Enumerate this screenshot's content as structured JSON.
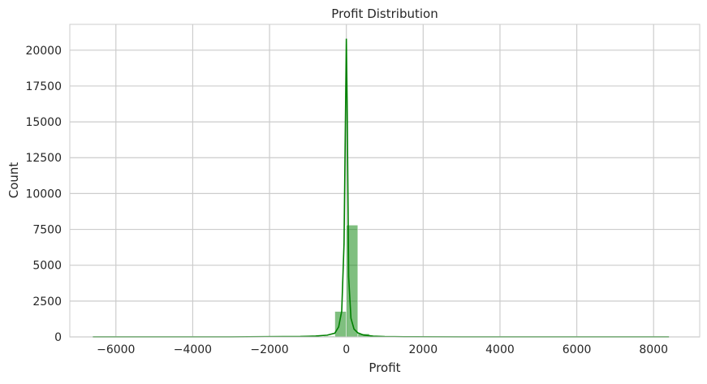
{
  "chart_data": {
    "type": "bar",
    "subtype": "histogram-with-kde",
    "title": "Profit Distribution",
    "xlabel": "Profit",
    "ylabel": "Count",
    "xlim": [
      -7200,
      9200
    ],
    "ylim": [
      0,
      21800
    ],
    "xticks": [
      -6000,
      -4000,
      -2000,
      0,
      2000,
      4000,
      6000,
      8000
    ],
    "xtick_labels": [
      "−6000",
      "−4000",
      "−2000",
      "0",
      "2000",
      "4000",
      "6000",
      "8000"
    ],
    "yticks": [
      0,
      2500,
      5000,
      7500,
      10000,
      12500,
      15000,
      17500,
      20000
    ],
    "ytick_labels": [
      "0",
      "2500",
      "5000",
      "7500",
      "10000",
      "12500",
      "15000",
      "17500",
      "20000"
    ],
    "grid": true,
    "colors": {
      "bar": "#008000",
      "kde": "#008000",
      "grid": "#cccccc",
      "spine": "#cccccc",
      "text": "#262626"
    },
    "bins": [
      {
        "x0": -6600,
        "x1": -6300,
        "count": 3
      },
      {
        "x0": -1200,
        "x1": -900,
        "count": 8
      },
      {
        "x0": -900,
        "x1": -600,
        "count": 20
      },
      {
        "x0": -600,
        "x1": -300,
        "count": 60
      },
      {
        "x0": -300,
        "x1": 0,
        "count": 1780
      },
      {
        "x0": 0,
        "x1": 300,
        "count": 7800
      },
      {
        "x0": 300,
        "x1": 600,
        "count": 220
      },
      {
        "x0": 600,
        "x1": 900,
        "count": 60
      },
      {
        "x0": 900,
        "x1": 1200,
        "count": 25
      },
      {
        "x0": 1200,
        "x1": 1500,
        "count": 12
      },
      {
        "x0": 8100,
        "x1": 8400,
        "count": 2
      }
    ],
    "kde": {
      "x": [
        -6600,
        -3000,
        -1200,
        -800,
        -500,
        -300,
        -200,
        -120,
        -60,
        -20,
        0,
        20,
        60,
        120,
        200,
        300,
        450,
        700,
        1000,
        1500,
        3000,
        6000,
        8400
      ],
      "y": [
        5,
        5,
        30,
        60,
        120,
        260,
        700,
        1800,
        6500,
        16000,
        20800,
        16500,
        4200,
        1300,
        550,
        280,
        130,
        55,
        25,
        10,
        5,
        5,
        5
      ]
    }
  }
}
